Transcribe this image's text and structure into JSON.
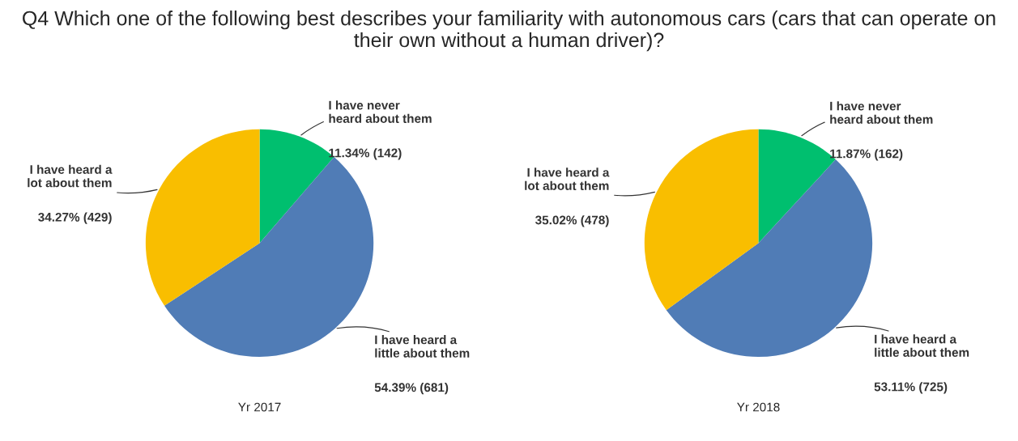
{
  "chart_data": [
    {
      "type": "pie",
      "title": "Q4 Which one of the following best describes your familiarity with autonomous cars (cars that can operate on their own without a human driver)?",
      "xlabel": "Yr 2017",
      "categories": [
        "I have never heard about them",
        "I have heard a little about them",
        "I have heard a lot about them"
      ],
      "values": [
        142,
        681,
        429
      ],
      "colors": [
        "#00bf6f",
        "#507cb6",
        "#f9be00"
      ],
      "value_labels": [
        "11.34% (142)",
        "54.39% (681)",
        "34.27% (429)"
      ],
      "legend": false
    },
    {
      "type": "pie",
      "xlabel": "Yr 2018",
      "categories": [
        "I have never heard about them",
        "I have heard a little about them",
        "I have heard a lot about them"
      ],
      "values": [
        162,
        725,
        478
      ],
      "colors": [
        "#00bf6f",
        "#507cb6",
        "#f9be00"
      ],
      "value_labels": [
        "11.87% (162)",
        "53.11% (725)",
        "35.02% (478)"
      ],
      "legend": false
    }
  ]
}
